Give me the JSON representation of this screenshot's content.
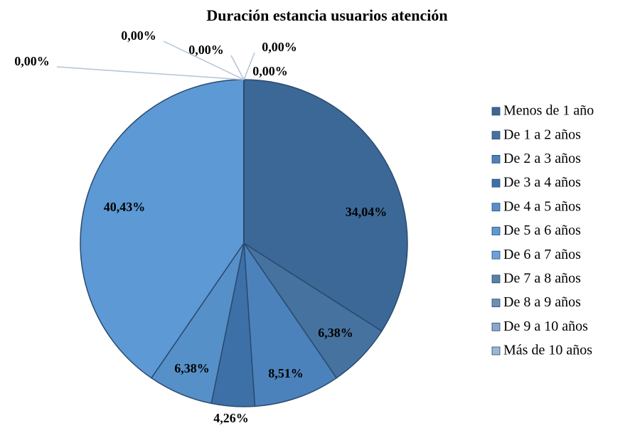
{
  "chart_data": {
    "type": "pie",
    "title": "Duración estancia usuarios atención",
    "categories": [
      "Menos de 1 año",
      "De 1 a 2 años",
      "De 2 a 3 años",
      "De 3 a 4 años",
      "De 4 a 5 años",
      "De 5 a 6 años",
      "De 6 a 7 años",
      "De 7 a 8 años",
      "De 8 a 9 años",
      "De 9 a 10 años",
      "Más de 10 años"
    ],
    "values": [
      34.04,
      6.38,
      8.51,
      4.26,
      6.38,
      40.43,
      0,
      0,
      0,
      0,
      0
    ],
    "value_labels": [
      "34,04%",
      "6,38%",
      "8,51%",
      "4,26%",
      "6,38%",
      "40,43%",
      "0,00%",
      "0,00%",
      "0,00%",
      "0,00%",
      "0,00%"
    ],
    "colors": [
      "#3b6897",
      "#46729f",
      "#4c82bb",
      "#3e70a8",
      "#5690c9",
      "#5c99d5",
      "#6aa3dc",
      "#5b7fa6",
      "#6f8fb2",
      "#8aa8c9",
      "#9fb6d0"
    ],
    "legend": "right"
  }
}
